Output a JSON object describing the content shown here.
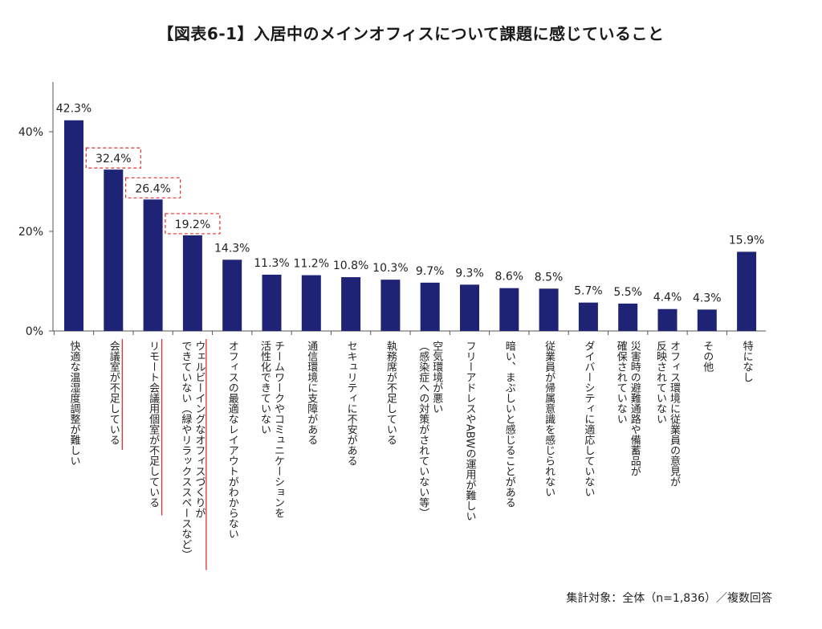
{
  "chart_data": {
    "type": "bar",
    "title": "【図表6-1】入居中のメインオフィスについて課題に感じていること",
    "categories": [
      "快適な温湿度調整が難しい",
      "会議室が不足している",
      "リモート会議用個室が不足している",
      "ウェルビーイングなオフィスづくりができていない（緑やリラックススペースなど）",
      "オフィスの最適なレイアウトがわからない",
      "チームワークやコミュニケーションを活性化できていない",
      "通信環境に支障がある",
      "セキュリティに不安がある",
      "執務席が不足している",
      "空気環境が悪い（感染症への対策がされていない等）",
      "フリーアドレスやABWの運用が難しい",
      "暗い、まぶしいと感じることがある",
      "従業員が帰属意識を感じられない",
      "ダイバーシティに適応していない",
      "災害時の避難通路や備蓄品が確保されていない",
      "オフィス環境に従業員の意見が反映されていない",
      "その他",
      "特になし"
    ],
    "category_lines": [
      [
        "快適な温湿度調整が難しい"
      ],
      [
        "会議室が不足している"
      ],
      [
        "リモート会議用個室が不足している"
      ],
      [
        "ウェルビーイングなオフィスづくりが",
        "できていない（緑やリラックススペースなど）"
      ],
      [
        "オフィスの最適なレイアウトがわからない"
      ],
      [
        "チームワークやコミュニケーションを",
        "活性化できていない"
      ],
      [
        "通信環境に支障がある"
      ],
      [
        "セキュリティに不安がある"
      ],
      [
        "執務席が不足している"
      ],
      [
        "空気環境が悪い",
        "（感染症への対策がされていない等）"
      ],
      [
        "フリーアドレスやABWの運用が難しい"
      ],
      [
        "暗い、まぶしいと感じることがある"
      ],
      [
        "従業員が帰属意識を感じられない"
      ],
      [
        "ダイバーシティに適応していない"
      ],
      [
        "災害時の避難通路や備蓄品が",
        "確保されていない"
      ],
      [
        "オフィス環境に従業員の意見が",
        "反映されていない"
      ],
      [
        "その他"
      ],
      [
        "特になし"
      ]
    ],
    "values": [
      42.3,
      32.4,
      26.4,
      19.2,
      14.3,
      11.3,
      11.2,
      10.8,
      10.3,
      9.7,
      9.3,
      8.6,
      8.5,
      5.7,
      5.5,
      4.4,
      4.3,
      15.9
    ],
    "data_labels": [
      "42.3%",
      "32.4%",
      "26.4%",
      "19.2%",
      "14.3%",
      "11.3%",
      "11.2%",
      "10.8%",
      "10.3%",
      "9.7%",
      "9.3%",
      "8.6%",
      "8.5%",
      "5.7%",
      "5.5%",
      "4.4%",
      "4.3%",
      "15.9%"
    ],
    "highlighted_indices": [
      1,
      2,
      3
    ],
    "y_ticks": [
      0,
      20,
      40
    ],
    "y_tick_labels": [
      "0%",
      "20%",
      "40%"
    ],
    "ylim": [
      0,
      50
    ],
    "grid": false,
    "bar_color": "#1f2375",
    "highlight_color": "#e03030",
    "xlabel": "",
    "ylabel": ""
  },
  "footnote": "集計対象：全体（n=1,836）／複数回答"
}
